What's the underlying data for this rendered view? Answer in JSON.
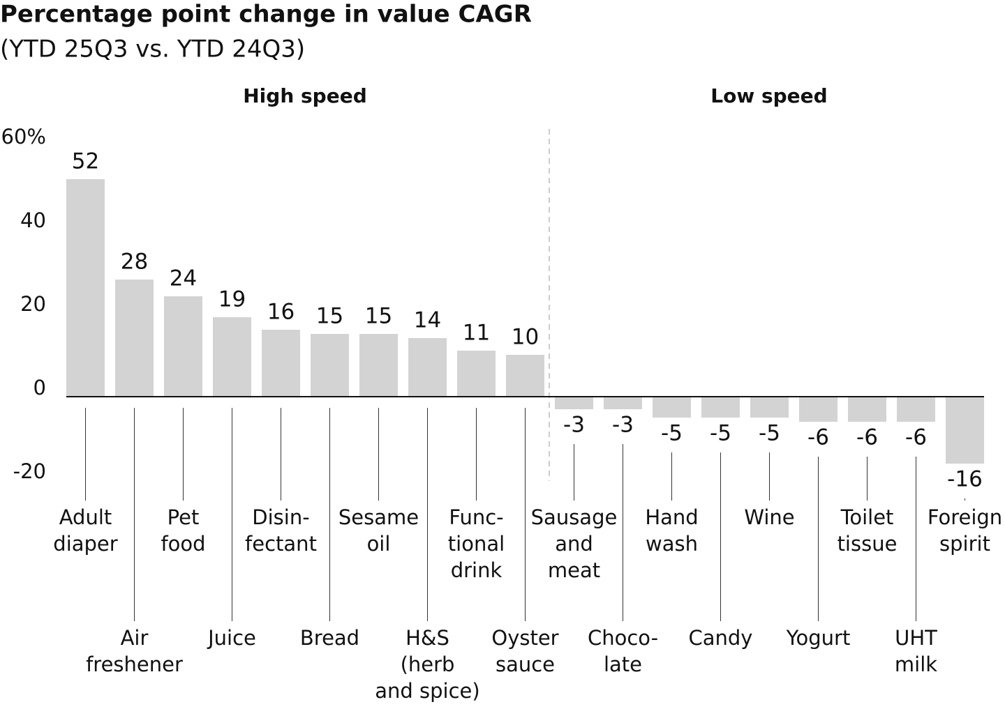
{
  "chart_data": {
    "type": "bar",
    "title": "Percentage point change in value CAGR",
    "subtitle": "(YTD 25Q3 vs. YTD 24Q3)",
    "groups": [
      "High speed",
      "Low speed"
    ],
    "categories": [
      [
        "Adult",
        "diaper"
      ],
      [
        "Air",
        "freshener"
      ],
      [
        "Pet",
        "food"
      ],
      [
        "Juice"
      ],
      [
        "Disin-",
        "fectant"
      ],
      [
        "Bread"
      ],
      [
        "Sesame",
        "oil"
      ],
      [
        "H&S",
        "(herb",
        "and spice)"
      ],
      [
        "Func-",
        "tional",
        "drink"
      ],
      [
        "Oyster",
        "sauce"
      ],
      [
        "Sausage",
        "and",
        "meat"
      ],
      [
        "Choco-",
        "late"
      ],
      [
        "Hand",
        "wash"
      ],
      [
        "Candy"
      ],
      [
        "Wine"
      ],
      [
        "Yogurt"
      ],
      [
        "Toilet",
        "tissue"
      ],
      [
        "UHT",
        "milk"
      ],
      [
        "Foreign",
        "spirit"
      ]
    ],
    "values": [
      52,
      28,
      24,
      19,
      16,
      15,
      15,
      14,
      11,
      10,
      -3,
      -3,
      -5,
      -5,
      -5,
      -6,
      -6,
      -6,
      -16
    ],
    "color": "#d3d3d3",
    "ylim": [
      -20,
      60
    ],
    "yticks": [
      -20,
      0,
      20,
      40,
      {
        "value": 60,
        "label": "60%"
      }
    ]
  }
}
